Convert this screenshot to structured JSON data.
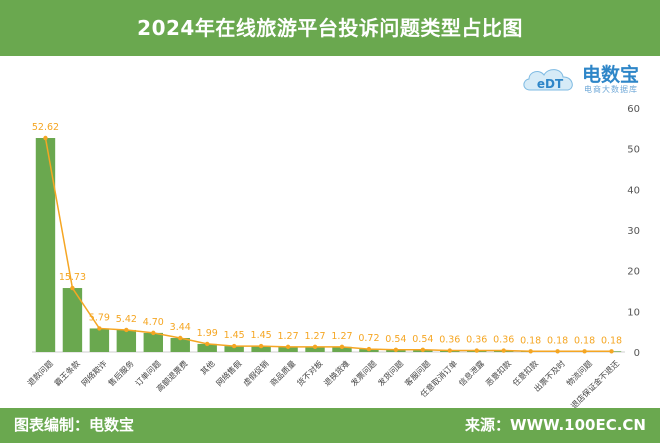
{
  "header": {
    "title": "2024年在线旅游平台投诉问题类型占比图"
  },
  "logo": {
    "name": "电数宝",
    "tagline": "电商大数据库",
    "mark_text": "eDT"
  },
  "footer": {
    "left_label": "图表编制：电数宝",
    "right_label": "来源：WWW.100EC.CN"
  },
  "colors": {
    "bar": "#6aa84f",
    "line": "#f5a623",
    "label": "#f5a623",
    "header_bg": "#6aa84f",
    "logo": "#2e86c8"
  },
  "chart_data": {
    "type": "bar",
    "title": "2024年在线旅游平台投诉问题类型占比图",
    "categories": [
      "退款问题",
      "霸王条款",
      "网络欺诈",
      "售后服务",
      "订单问题",
      "高额退票费",
      "其他",
      "网络售假",
      "虚假促销",
      "商品质量",
      "货不对板",
      "退换货难",
      "发票问题",
      "发货问题",
      "客服问题",
      "任意取消订单",
      "信息泄露",
      "恶意扣款",
      "任意扣款",
      "出票不及时",
      "物流问题",
      "退店保证金不退还"
    ],
    "values": [
      52.62,
      15.73,
      5.79,
      5.42,
      4.7,
      3.44,
      1.99,
      1.45,
      1.45,
      1.27,
      1.27,
      1.27,
      0.72,
      0.54,
      0.54,
      0.36,
      0.36,
      0.36,
      0.18,
      0.18,
      0.18,
      0.18
    ],
    "value_labels": [
      "52.62",
      "15.73",
      "5.79",
      "5.42",
      "4.70",
      "3.44",
      "1.99",
      "1.45",
      "1.45",
      "1.27",
      "1.27",
      "1.27",
      "0.72",
      "0.54",
      "0.54",
      "0.36",
      "0.36",
      "0.36",
      "0.18",
      "0.18",
      "0.18",
      "0.18"
    ],
    "overlay": "line",
    "ylim": [
      0,
      60
    ],
    "yticks": [
      "0",
      "10",
      "20",
      "30",
      "40",
      "50",
      "60"
    ],
    "y_axis_side": "right",
    "xlabel": "",
    "ylabel": "",
    "grid": false
  }
}
